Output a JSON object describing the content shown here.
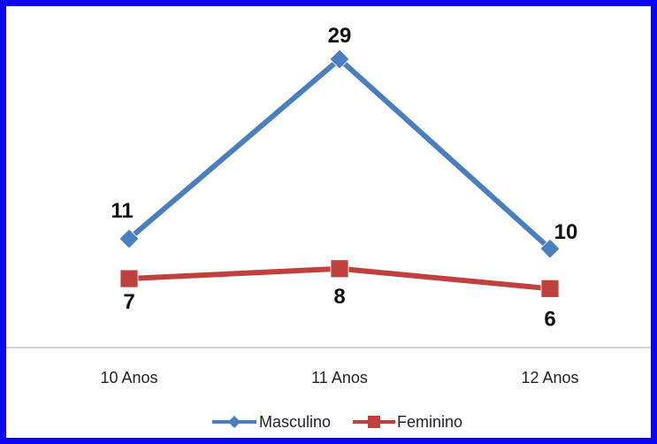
{
  "chart_data": {
    "type": "line",
    "categories": [
      "10 Anos",
      "11 Anos",
      "12 Anos"
    ],
    "series": [
      {
        "name": "Masculino",
        "values": [
          11,
          29,
          10
        ],
        "color": "#4a7ebf",
        "marker": "diamond"
      },
      {
        "name": "Feminino",
        "values": [
          7,
          8,
          6
        ],
        "color": "#c0403d",
        "marker": "square"
      }
    ],
    "title": "",
    "xlabel": "",
    "ylabel": "",
    "ylim": [
      0,
      32
    ],
    "grid": false,
    "legend_position": "bottom",
    "frame_color": "#0c06f2"
  }
}
